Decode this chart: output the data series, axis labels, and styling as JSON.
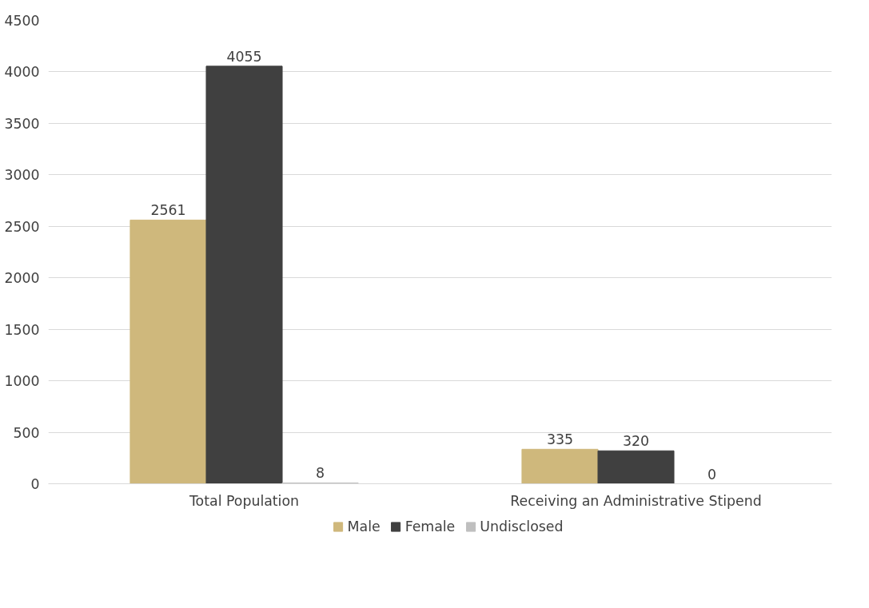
{
  "chart_data": {
    "type": "bar",
    "categories": [
      "Total Population",
      "Receiving an Administrative Stipend"
    ],
    "series": [
      {
        "name": "Male",
        "color": "#cfb87c",
        "values": [
          2561,
          335
        ]
      },
      {
        "name": "Female",
        "color": "#404040",
        "values": [
          4055,
          320
        ]
      },
      {
        "name": "Undisclosed",
        "color": "#bfbfbf",
        "values": [
          8,
          0
        ]
      }
    ],
    "ylim": [
      0,
      4500
    ],
    "yticks": [
      0,
      500,
      1000,
      1500,
      2000,
      2500,
      3000,
      3500,
      4000,
      4500
    ],
    "grid": "y",
    "legend": "bottom",
    "data_labels": true
  }
}
